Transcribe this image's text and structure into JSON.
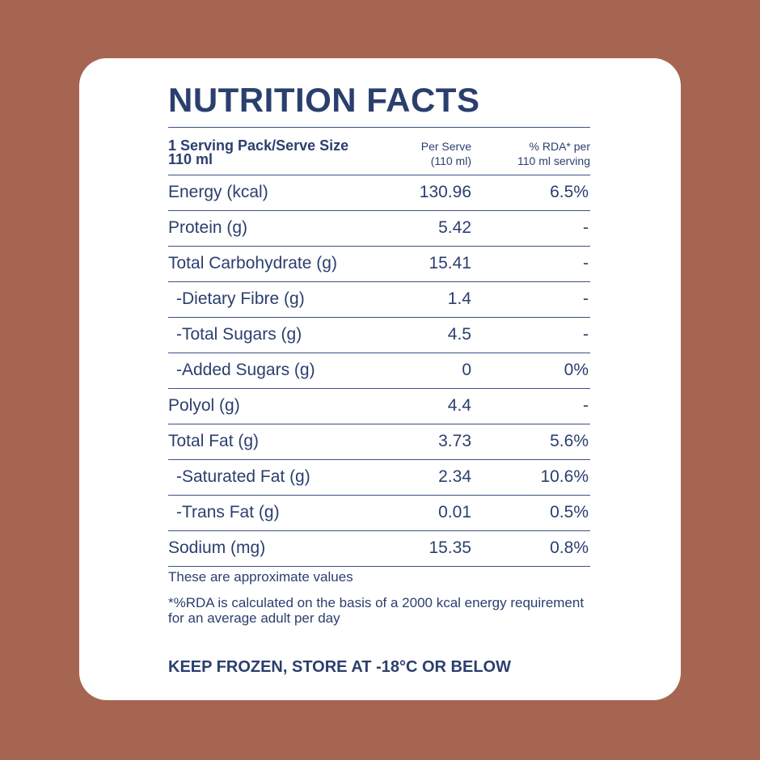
{
  "title": "NUTRITION FACTS",
  "header": {
    "serving_line1": "1 Serving Pack/Serve Size",
    "serving_line2": "110 ml",
    "per_serve_line1": "Per Serve",
    "per_serve_line2": "(110 ml)",
    "rda_line1": "% RDA* per",
    "rda_line2": "110 ml serving"
  },
  "rows": [
    {
      "name": "Energy (kcal)",
      "value": "130.96",
      "rda": "6.5%"
    },
    {
      "name": "Protein (g)",
      "value": "5.42",
      "rda": "-"
    },
    {
      "name": "Total Carbohydrate (g)",
      "value": "15.41",
      "rda": "-"
    },
    {
      "name": "-Dietary Fibre (g)",
      "value": "1.4",
      "rda": "-"
    },
    {
      "name": "-Total Sugars (g)",
      "value": "4.5",
      "rda": "-"
    },
    {
      "name": "-Added Sugars (g)",
      "value": "0",
      "rda": "0%"
    },
    {
      "name": "Polyol (g)",
      "value": "4.4",
      "rda": "-"
    },
    {
      "name": "Total Fat (g)",
      "value": "3.73",
      "rda": "5.6%"
    },
    {
      "name": "-Saturated Fat (g)",
      "value": "2.34",
      "rda": "10.6%"
    },
    {
      "name": "-Trans Fat (g)",
      "value": "0.01",
      "rda": "0.5%"
    },
    {
      "name": "Sodium (mg)",
      "value": "15.35",
      "rda": "0.8%"
    }
  ],
  "notes": {
    "approx": "These are approximate values",
    "rda_basis": "*%RDA is calculated on the basis of a 2000 kcal energy requirement for an average adult per day"
  },
  "storage": "KEEP FROZEN, STORE AT -18°C OR BELOW",
  "colors": {
    "background": "#a66551",
    "text": "#2b3f6e",
    "card": "#ffffff"
  }
}
